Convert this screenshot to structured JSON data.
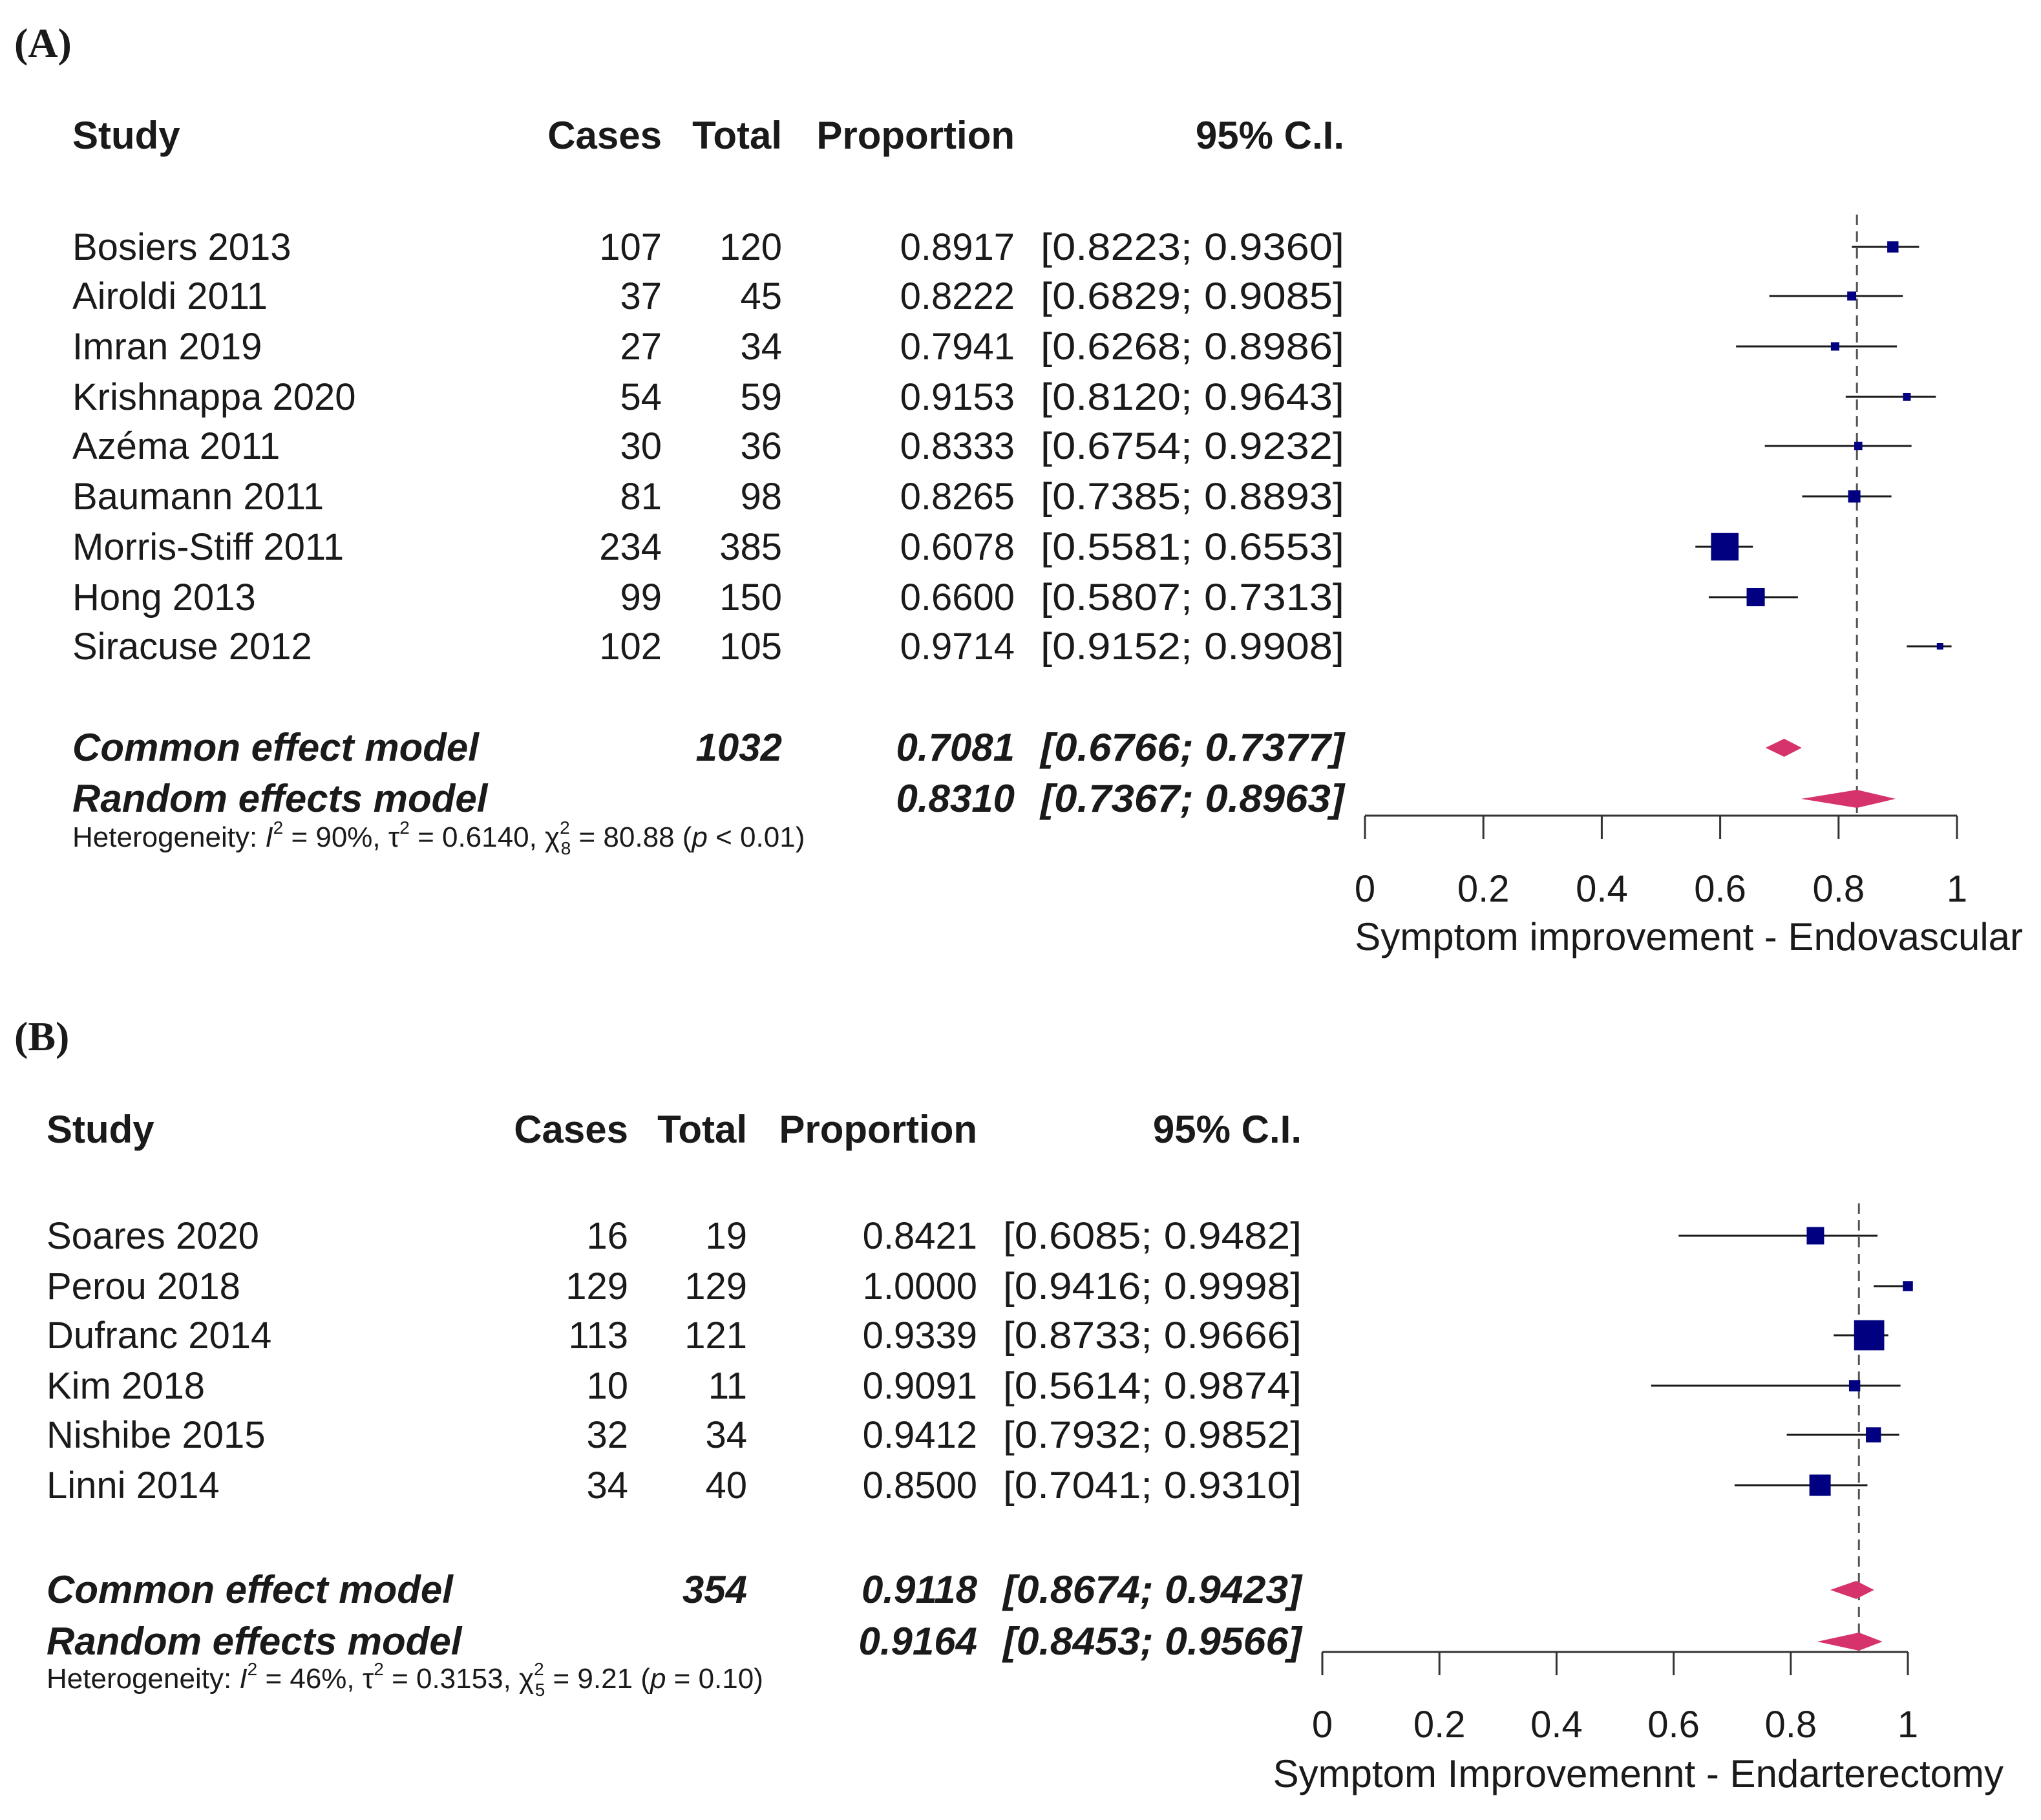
{
  "chart_data": [
    {
      "type": "forest",
      "panel_label": "(A)",
      "headers": {
        "study": "Study",
        "cases": "Cases",
        "total": "Total",
        "proportion": "Proportion",
        "ci": "95% C.I."
      },
      "studies": [
        {
          "study": "Bosiers 2013",
          "cases": "107",
          "total": "120",
          "proportion": "0.8917",
          "ci": "[0.8223; 0.9360]",
          "est": 0.8917,
          "lo": 0.8223,
          "hi": 0.936,
          "weight": 2.5
        },
        {
          "study": "Airoldi 2011",
          "cases": "37",
          "total": "45",
          "proportion": "0.8222",
          "ci": "[0.6829; 0.9085]",
          "est": 0.8222,
          "lo": 0.6829,
          "hi": 0.9085,
          "weight": 1.6
        },
        {
          "study": "Imran 2019",
          "cases": "27",
          "total": "34",
          "proportion": "0.7941",
          "ci": "[0.6268; 0.8986]",
          "est": 0.7941,
          "lo": 0.6268,
          "hi": 0.8986,
          "weight": 1.4
        },
        {
          "study": "Krishnappa 2020",
          "cases": "54",
          "total": "59",
          "proportion": "0.9153",
          "ci": "[0.8120; 0.9643]",
          "est": 0.9153,
          "lo": 0.812,
          "hi": 0.9643,
          "weight": 1.2
        },
        {
          "study": "Azéma 2011",
          "cases": "30",
          "total": "36",
          "proportion": "0.8333",
          "ci": "[0.6754; 0.9232]",
          "est": 0.8333,
          "lo": 0.6754,
          "hi": 0.9232,
          "weight": 1.3
        },
        {
          "study": "Baumann 2011",
          "cases": "81",
          "total": "98",
          "proportion": "0.8265",
          "ci": "[0.7385; 0.8893]",
          "est": 0.8265,
          "lo": 0.7385,
          "hi": 0.8893,
          "weight": 3.0
        },
        {
          "study": "Morris-Stiff 2011",
          "cases": "234",
          "total": "385",
          "proportion": "0.6078",
          "ci": "[0.5581; 0.6553]",
          "est": 0.6078,
          "lo": 0.5581,
          "hi": 0.6553,
          "weight": 15.0
        },
        {
          "study": "Hong 2013",
          "cases": "99",
          "total": "150",
          "proportion": "0.6600",
          "ci": "[0.5807; 0.7313]",
          "est": 0.66,
          "lo": 0.5807,
          "hi": 0.7313,
          "weight": 6.5
        },
        {
          "study": "Siracuse 2012",
          "cases": "102",
          "total": "105",
          "proportion": "0.9714",
          "ci": "[0.9152; 0.9908]",
          "est": 0.9714,
          "lo": 0.9152,
          "hi": 0.9908,
          "weight": 0.8
        }
      ],
      "common": {
        "label": "Common effect model",
        "total": "1032",
        "proportion": "0.7081",
        "ci": "[0.6766; 0.7377]",
        "est": 0.7081,
        "lo": 0.6766,
        "hi": 0.7377
      },
      "random": {
        "label": "Random effects model",
        "proportion": "0.8310",
        "ci": "[0.7367; 0.8963]",
        "est": 0.831,
        "lo": 0.7367,
        "hi": 0.8963
      },
      "heterogeneity": {
        "prefix": "Heterogeneity: ",
        "i2": "90%",
        "tau2": "0.6140",
        "df": "8",
        "chi2": "80.88",
        "p": "p < 0.01"
      },
      "xlim": [
        0,
        1
      ],
      "ticks": [
        0,
        0.2,
        0.4,
        0.6,
        0.8,
        1
      ],
      "tick_labels": [
        "0",
        "0.2",
        "0.4",
        "0.6",
        "0.8",
        "1"
      ],
      "reference_line": 0.831,
      "xlabel": "Symptom improvement - Endovascular",
      "colors": {
        "square": "#000080",
        "diamond": "#d6336c",
        "line": "#1a1a1a",
        "ci_gray": "#8c8c8c",
        "ref": "#555555"
      }
    },
    {
      "type": "forest",
      "panel_label": "(B)",
      "headers": {
        "study": "Study",
        "cases": "Cases",
        "total": "Total",
        "proportion": "Proportion",
        "ci": "95% C.I."
      },
      "studies": [
        {
          "study": "Soares 2020",
          "cases": "16",
          "total": "19",
          "proportion": "0.8421",
          "ci": "[0.6085; 0.9482]",
          "est": 0.8421,
          "lo": 0.6085,
          "hi": 0.9482,
          "weight": 6.0
        },
        {
          "study": "Perou 2018",
          "cases": "129",
          "total": "129",
          "proportion": "1.0000",
          "ci": "[0.9416; 0.9998]",
          "est": 1.0,
          "lo": 0.9416,
          "hi": 0.9998,
          "weight": 2.0
        },
        {
          "study": "Dufranc 2014",
          "cases": "113",
          "total": "121",
          "proportion": "0.9339",
          "ci": "[0.8733; 0.9666]",
          "est": 0.9339,
          "lo": 0.8733,
          "hi": 0.9666,
          "weight": 18.0
        },
        {
          "study": "Kim 2018",
          "cases": "10",
          "total": "11",
          "proportion": "0.9091",
          "ci": "[0.5614; 0.9874]",
          "est": 0.9091,
          "lo": 0.5614,
          "hi": 0.9874,
          "weight": 2.5
        },
        {
          "study": "Nishibe 2015",
          "cases": "32",
          "total": "34",
          "proportion": "0.9412",
          "ci": "[0.7932; 0.9852]",
          "est": 0.9412,
          "lo": 0.7932,
          "hi": 0.9852,
          "weight": 4.5
        },
        {
          "study": "Linni 2014",
          "cases": "34",
          "total": "40",
          "proportion": "0.8500",
          "ci": "[0.7041; 0.9310]",
          "est": 0.85,
          "lo": 0.7041,
          "hi": 0.931,
          "weight": 9.0
        }
      ],
      "common": {
        "label": "Common effect model",
        "total": "354",
        "proportion": "0.9118",
        "ci": "[0.8674; 0.9423]",
        "est": 0.9118,
        "lo": 0.8674,
        "hi": 0.9423
      },
      "random": {
        "label": "Random effects model",
        "proportion": "0.9164",
        "ci": "[0.8453; 0.9566]",
        "est": 0.9164,
        "lo": 0.8453,
        "hi": 0.9566
      },
      "heterogeneity": {
        "prefix": "Heterogeneity: ",
        "i2": "46%",
        "tau2": "0.3153",
        "df": "5",
        "chi2": "9.21",
        "p": "p = 0.10"
      },
      "xlim": [
        0,
        1
      ],
      "ticks": [
        0,
        0.2,
        0.4,
        0.6,
        0.8,
        1
      ],
      "tick_labels": [
        "0",
        "0.2",
        "0.4",
        "0.6",
        "0.8",
        "1"
      ],
      "reference_line": 0.9164,
      "xlabel": "Symptom Improvemennt - Endarterectomy",
      "colors": {
        "square": "#000080",
        "diamond": "#d6336c",
        "line": "#1a1a1a",
        "ci_gray": "#8c8c8c",
        "ref": "#555555"
      }
    }
  ]
}
